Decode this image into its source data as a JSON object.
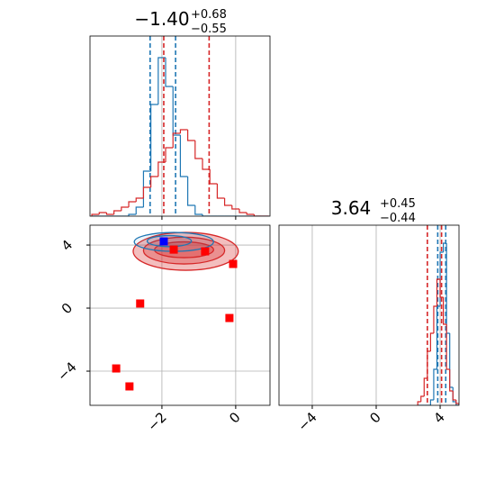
{
  "chart_data": [
    {
      "type": "histogram",
      "title": "−1.40",
      "title_upper": "+0.68",
      "title_lower": "−0.55",
      "xlim": [
        -3.95,
        0.93
      ],
      "ylim": [
        0,
        100
      ],
      "xticks": [
        -2,
        0
      ],
      "grid": true,
      "bins": [
        -3.9,
        -3.7,
        -3.5,
        -3.3,
        -3.1,
        -2.9,
        -2.7,
        -2.5,
        -2.3,
        -2.1,
        -1.9,
        -1.7,
        -1.5,
        -1.3,
        -1.1,
        -0.9,
        -0.7,
        -0.5,
        -0.3,
        -0.1,
        0.1,
        0.3,
        0.5,
        0.7,
        0.9
      ],
      "series": [
        {
          "color": "#1f77b4",
          "values": [
            0,
            0,
            0,
            0,
            0,
            1,
            5,
            25,
            62,
            88,
            72,
            45,
            22,
            6,
            1,
            0,
            0,
            0,
            0,
            0,
            0,
            0,
            0,
            0
          ],
          "quantiles": [
            -2.32,
            -1.63
          ]
        },
        {
          "color": "#d62728",
          "values": [
            1,
            2,
            1,
            3,
            5,
            8,
            10,
            16,
            22,
            30,
            38,
            46,
            48,
            42,
            32,
            26,
            18,
            10,
            6,
            4,
            2,
            1,
            0,
            0
          ],
          "quantiles": [
            -1.95,
            -0.72
          ]
        }
      ]
    },
    {
      "type": "scatter",
      "xlim": [
        -3.95,
        0.93
      ],
      "ylim": [
        -6.17,
        5.26
      ],
      "xticks": [
        {
          "value": -2,
          "label": "−2"
        },
        0
      ],
      "yticks": [
        {
          "value": -4,
          "label": "−4"
        },
        0,
        4
      ],
      "grid": true,
      "contours": [
        {
          "color": "#d62728",
          "levels": [
            {
              "x": [
                -2.78,
                0.07
              ],
              "y": [
                2.4,
                4.8
              ]
            },
            {
              "x": [
                -2.5,
                -0.3
              ],
              "y": [
                2.8,
                4.5
              ]
            },
            {
              "x": [
                -2.2,
                -0.6
              ],
              "y": [
                3.2,
                4.2
              ]
            }
          ]
        },
        {
          "color": "#1f77b4",
          "levels": [
            {
              "x": [
                -2.75,
                -0.6
              ],
              "y": [
                3.6,
                4.8
              ]
            },
            {
              "x": [
                -2.4,
                -1.2
              ],
              "y": [
                3.9,
                4.6
              ]
            }
          ]
        }
      ],
      "points": [
        {
          "color": "#ff0000",
          "x": [
            -2.59,
            -0.07,
            -0.17,
            -3.24,
            -2.88,
            -1.68,
            -0.83
          ],
          "y": [
            0.29,
            2.8,
            -0.63,
            -3.83,
            -4.97,
            3.71,
            3.6
          ]
        },
        {
          "color": "#0000ff",
          "x": [
            -1.95
          ],
          "y": [
            4.23
          ]
        }
      ]
    },
    {
      "type": "histogram",
      "title": "3.64",
      "title_upper": "+0.45",
      "title_lower": "−0.44",
      "xlim": [
        -6.08,
        5.18
      ],
      "ylim": [
        0,
        100
      ],
      "xticks": [
        {
          "value": -4,
          "label": "−4"
        },
        0,
        4
      ],
      "grid": true,
      "bins": [
        2.6,
        2.8,
        3.0,
        3.2,
        3.4,
        3.6,
        3.8,
        4.0,
        4.2,
        4.4,
        4.6,
        4.8,
        5.0,
        5.2
      ],
      "series": [
        {
          "color": "#1f77b4",
          "values": [
            0,
            0,
            0,
            0,
            3,
            20,
            55,
            85,
            90,
            40,
            10,
            2,
            0
          ],
          "quantiles": [
            3.85,
            4.35
          ]
        },
        {
          "color": "#d62728",
          "values": [
            2,
            5,
            15,
            30,
            40,
            55,
            70,
            60,
            45,
            20,
            8,
            3,
            1
          ],
          "quantiles": [
            3.2,
            4.09
          ]
        }
      ]
    }
  ]
}
